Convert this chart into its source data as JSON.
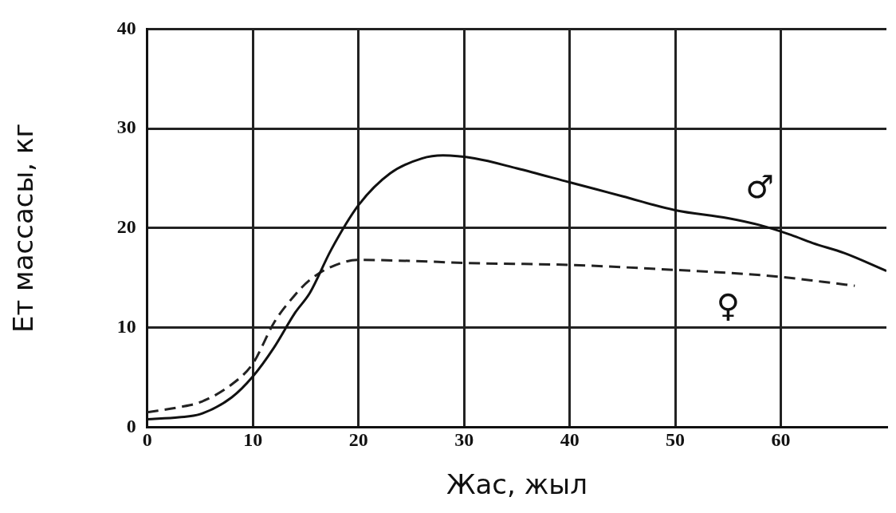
{
  "chart_data": {
    "type": "line",
    "xlabel": "Жас, жыл",
    "ylabel": "Ет массасы, кг",
    "xlim": [
      0,
      70
    ],
    "ylim": [
      0,
      40
    ],
    "xticks": [
      0,
      10,
      20,
      30,
      40,
      50,
      60
    ],
    "yticks": [
      0,
      10,
      20,
      30,
      40
    ],
    "grid": true,
    "legend": false,
    "marker": "none",
    "series": [
      {
        "color": "#111111",
        "line_style": "solid",
        "x": [
          0,
          3,
          5,
          8,
          10,
          12,
          14,
          15.4,
          17.4,
          20,
          23,
          26,
          28,
          31,
          35,
          40,
          45,
          50,
          55,
          58,
          61,
          63,
          66,
          70
        ],
        "values": [
          0.8,
          1,
          1.3,
          3,
          5.1,
          8,
          11.5,
          13.5,
          17.8,
          22.3,
          25.5,
          27,
          27.3,
          27,
          26,
          24.6,
          23.2,
          21.8,
          21,
          20.3,
          19.3,
          18.5,
          17.5,
          15.7
        ]
      },
      {
        "color": "#222222",
        "line_style": "dashed",
        "x": [
          0,
          3,
          5,
          8,
          10,
          12,
          14,
          15.4,
          17.4,
          20,
          25,
          30,
          40,
          50,
          55,
          60,
          64,
          67
        ],
        "values": [
          1.5,
          2,
          2.5,
          4.3,
          6.4,
          10.5,
          13.3,
          14.8,
          16.1,
          16.8,
          16.7,
          16.5,
          16.3,
          15.8,
          15.5,
          15.1,
          14.6,
          14.2
        ]
      }
    ],
    "annotations": [
      "♂",
      "♀"
    ]
  }
}
